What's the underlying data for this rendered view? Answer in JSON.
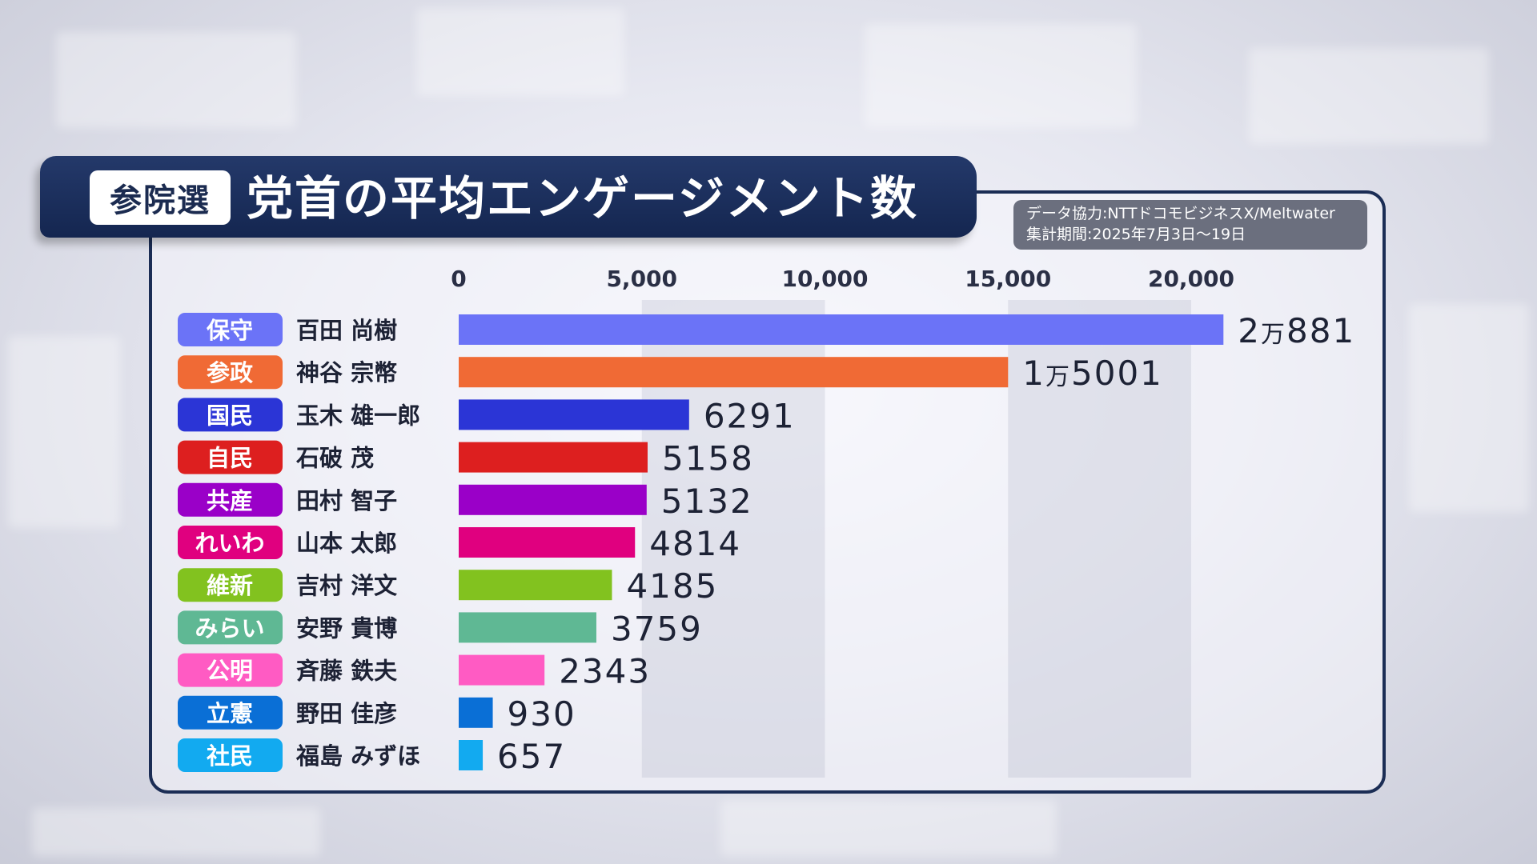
{
  "badge": "参院選",
  "title": "党首の平均エンゲージメント数",
  "source": {
    "line1": "データ協力:NTTドコモビジネスX/Meltwater",
    "line2": "集計期間:2025年7月3日〜19日"
  },
  "chart_data": {
    "type": "bar",
    "orientation": "horizontal",
    "xlim": [
      0,
      20000
    ],
    "ticks": [
      0,
      5000,
      10000,
      15000,
      20000
    ],
    "tick_labels": [
      "0",
      "5,000",
      "10,000",
      "15,000",
      "20,000"
    ],
    "rows": [
      {
        "party": "保守",
        "leader": "百田 尚樹",
        "value": 20881,
        "label_main": "2",
        "label_unit": "万",
        "label_rest": "881",
        "color": "#6b73f7"
      },
      {
        "party": "参政",
        "leader": "神谷 宗幣",
        "value": 15001,
        "label_main": "1",
        "label_unit": "万",
        "label_rest": "5001",
        "color": "#f06a35"
      },
      {
        "party": "国民",
        "leader": "玉木 雄一郎",
        "value": 6291,
        "label_main": "6291",
        "label_unit": "",
        "label_rest": "",
        "color": "#2b35d6"
      },
      {
        "party": "自民",
        "leader": "石破 茂",
        "value": 5158,
        "label_main": "5158",
        "label_unit": "",
        "label_rest": "",
        "color": "#dd1f1f"
      },
      {
        "party": "共産",
        "leader": "田村 智子",
        "value": 5132,
        "label_main": "5132",
        "label_unit": "",
        "label_rest": "",
        "color": "#9a00c8"
      },
      {
        "party": "れいわ",
        "leader": "山本 太郎",
        "value": 4814,
        "label_main": "4814",
        "label_unit": "",
        "label_rest": "",
        "color": "#e0007f"
      },
      {
        "party": "維新",
        "leader": "吉村 洋文",
        "value": 4185,
        "label_main": "4185",
        "label_unit": "",
        "label_rest": "",
        "color": "#82c21f"
      },
      {
        "party": "みらい",
        "leader": "安野 貴博",
        "value": 3759,
        "label_main": "3759",
        "label_unit": "",
        "label_rest": "",
        "color": "#5fb894"
      },
      {
        "party": "公明",
        "leader": "斉藤 鉄夫",
        "value": 2343,
        "label_main": "2343",
        "label_unit": "",
        "label_rest": "",
        "color": "#ff5bc3"
      },
      {
        "party": "立憲",
        "leader": "野田 佳彦",
        "value": 930,
        "label_main": "930",
        "label_unit": "",
        "label_rest": "",
        "color": "#0a6fd6"
      },
      {
        "party": "社民",
        "leader": "福島 みずほ",
        "value": 657,
        "label_main": "657",
        "label_unit": "",
        "label_rest": "",
        "color": "#12aaf0"
      }
    ]
  }
}
